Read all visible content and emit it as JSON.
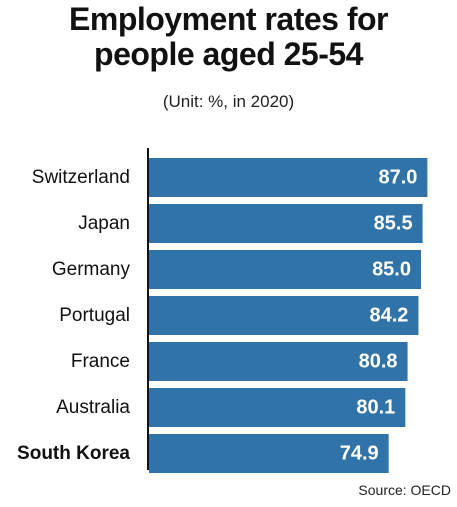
{
  "title_line1": "Employment rates for",
  "title_line2": "people aged 25-54",
  "subtitle": "(Unit: %, in 2020)",
  "source": "Source: OECD",
  "colors": {
    "bar": "#2f73a8",
    "axis": "#111111",
    "label_in_bar": "#ffffff"
  },
  "chart_data": {
    "type": "bar",
    "orientation": "horizontal",
    "title": "Employment rates for people aged 25-54",
    "subtitle": "(Unit: %, in 2020)",
    "categories": [
      "Switzerland",
      "Japan",
      "Germany",
      "Portugal",
      "France",
      "Australia",
      "South Korea"
    ],
    "values": [
      87.0,
      85.5,
      85.0,
      84.2,
      80.8,
      80.1,
      74.9
    ],
    "value_labels": [
      "87.0",
      "85.5",
      "85.0",
      "84.2",
      "80.8",
      "80.1",
      "74.9"
    ],
    "highlighted_category": "South Korea",
    "unit": "%",
    "grid": false,
    "legend": "none"
  }
}
